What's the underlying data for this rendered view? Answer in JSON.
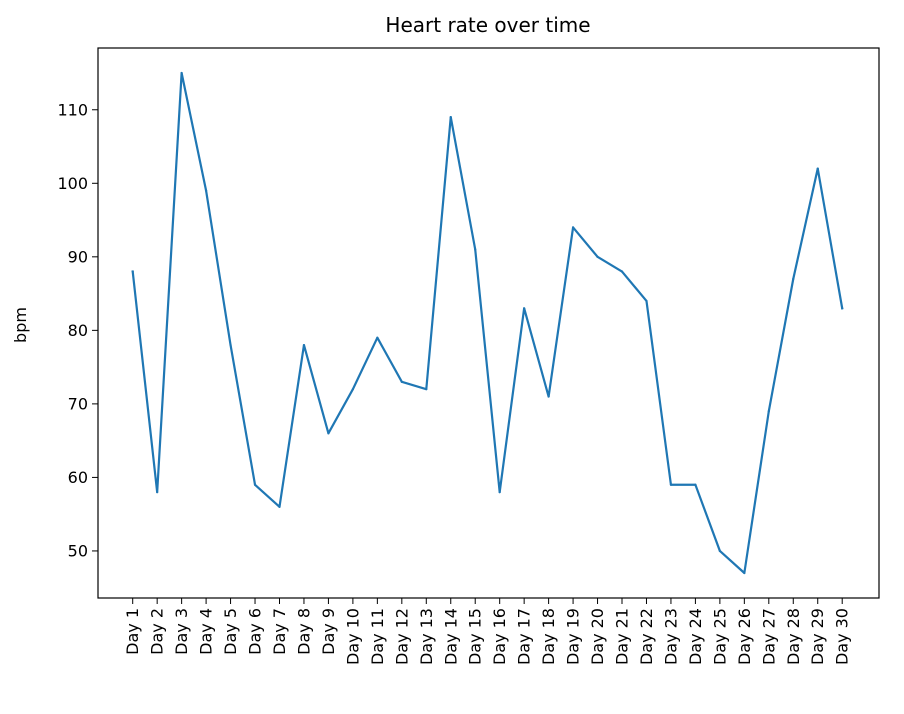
{
  "chart_data": {
    "type": "line",
    "title": "Heart rate over time",
    "xlabel": "",
    "ylabel": "bpm",
    "categories": [
      "Day 1",
      "Day 2",
      "Day 3",
      "Day 4",
      "Day 5",
      "Day 6",
      "Day 7",
      "Day 8",
      "Day 9",
      "Day 10",
      "Day 11",
      "Day 12",
      "Day 13",
      "Day 14",
      "Day 15",
      "Day 16",
      "Day 17",
      "Day 18",
      "Day 19",
      "Day 20",
      "Day 21",
      "Day 22",
      "Day 23",
      "Day 24",
      "Day 25",
      "Day 26",
      "Day 27",
      "Day 28",
      "Day 29",
      "Day 30"
    ],
    "series": [
      {
        "values": [
          88,
          58,
          115,
          99,
          78,
          59,
          56,
          78,
          66,
          72,
          79,
          73,
          72,
          109,
          91,
          58,
          83,
          71,
          94,
          90,
          88,
          84,
          59,
          59,
          50,
          47,
          69,
          87,
          102,
          83
        ]
      }
    ],
    "ylim": [
      43.6,
      118.4
    ],
    "yticks": [
      50,
      60,
      70,
      80,
      90,
      100,
      110
    ],
    "grid": false,
    "line_color": "#1f77b4"
  }
}
